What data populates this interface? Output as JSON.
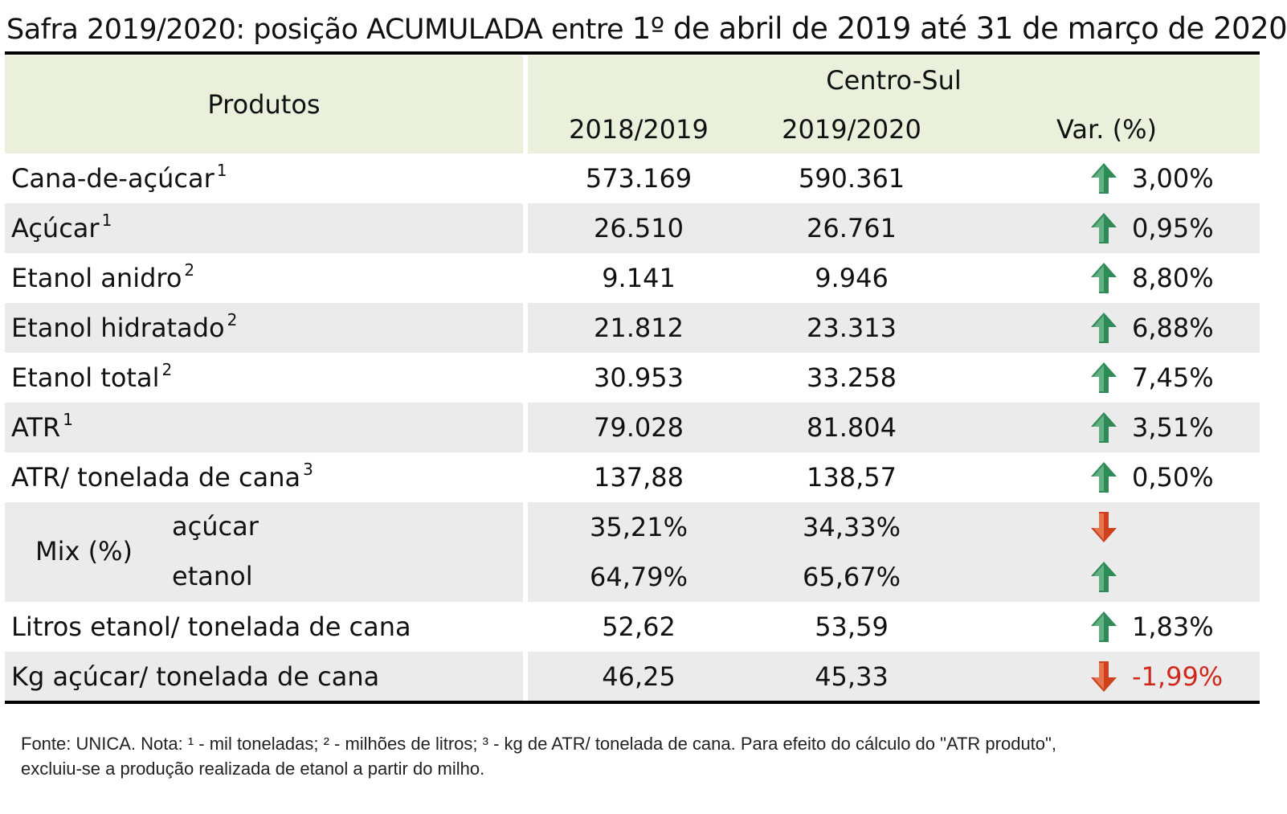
{
  "title": {
    "part1": "Safra 2019/2020: posição ACUMULADA entre ",
    "part2": "1º de abril de 2019 até 31 de março de 2020"
  },
  "header": {
    "produtos": "Produtos",
    "region": "Centro-Sul",
    "col1": "2018/2019",
    "col2": "2019/2020",
    "col3": "Var. (%)"
  },
  "rows": [
    {
      "label": "Cana-de-açúcar",
      "note": "1",
      "v1": "573.169",
      "v2": "590.361",
      "var": "3,00%",
      "dir": "up"
    },
    {
      "label": "Açúcar",
      "note": "1",
      "v1": "26.510",
      "v2": "26.761",
      "var": "0,95%",
      "dir": "up"
    },
    {
      "label": "Etanol anidro",
      "note": "2",
      "v1": "9.141",
      "v2": "9.946",
      "var": "8,80%",
      "dir": "up"
    },
    {
      "label": "Etanol hidratado",
      "note": "2",
      "v1": "21.812",
      "v2": "23.313",
      "var": "6,88%",
      "dir": "up"
    },
    {
      "label": "Etanol total",
      "note": "2",
      "v1": "30.953",
      "v2": "33.258",
      "var": "7,45%",
      "dir": "up"
    },
    {
      "label": "ATR",
      "note": "1",
      "v1": "79.028",
      "v2": "81.804",
      "var": "3,51%",
      "dir": "up"
    },
    {
      "label": "ATR/ tonelada de cana",
      "note": "3",
      "v1": "137,88",
      "v2": "138,57",
      "var": "0,50%",
      "dir": "up"
    }
  ],
  "mix": {
    "label": "Mix (%)",
    "acucar": {
      "label": "açúcar",
      "v1": "35,21%",
      "v2": "34,33%",
      "dir": "down"
    },
    "etanol": {
      "label": "etanol",
      "v1": "64,79%",
      "v2": "65,67%",
      "dir": "up"
    }
  },
  "rows2": [
    {
      "label": "Litros etanol/ tonelada de cana",
      "v1": "52,62",
      "v2": "53,59",
      "var": "1,83%",
      "dir": "up"
    },
    {
      "label": "Kg açúcar/ tonelada de cana",
      "v1": "46,25",
      "v2": "45,33",
      "var": "-1,99%",
      "dir": "down"
    }
  ],
  "colors": {
    "up": "#2e8b57",
    "up_light": "#8fd0a6",
    "down": "#d0401c",
    "down_light": "#f2a07a",
    "header_bg": "#ebf0dc",
    "row_bg": "#ebebeb",
    "negative_text": "#d0281c"
  },
  "footer": {
    "line1": "Fonte: UNICA. Nota: ¹ - mil toneladas; ² - milhões de litros; ³ - kg de ATR/ tonelada de cana. Para efeito do cálculo do \"ATR produto\",",
    "line2": "excluiu-se a produção realizada de etanol a partir do milho."
  },
  "chart_data": {
    "type": "table",
    "columns": [
      "Produtos",
      "2018/2019",
      "2019/2020",
      "Var. (%)"
    ],
    "rows": [
      [
        "Cana-de-açúcar ¹",
        "573.169",
        "590.361",
        "3,00%"
      ],
      [
        "Açúcar ¹",
        "26.510",
        "26.761",
        "0,95%"
      ],
      [
        "Etanol anidro ²",
        "9.141",
        "9.946",
        "8,80%"
      ],
      [
        "Etanol hidratado ²",
        "21.812",
        "23.313",
        "6,88%"
      ],
      [
        "Etanol total ²",
        "30.953",
        "33.258",
        "7,45%"
      ],
      [
        "ATR ¹",
        "79.028",
        "81.804",
        "3,51%"
      ],
      [
        "ATR/ tonelada de cana ³",
        "137,88",
        "138,57",
        "0,50%"
      ],
      [
        "Mix (%) açúcar",
        "35,21%",
        "34,33%",
        ""
      ],
      [
        "Mix (%) etanol",
        "64,79%",
        "65,67%",
        ""
      ],
      [
        "Litros etanol/ tonelada de cana",
        "52,62",
        "53,59",
        "1,83%"
      ],
      [
        "Kg açúcar/ tonelada de cana",
        "46,25",
        "45,33",
        "-1,99%"
      ]
    ]
  }
}
